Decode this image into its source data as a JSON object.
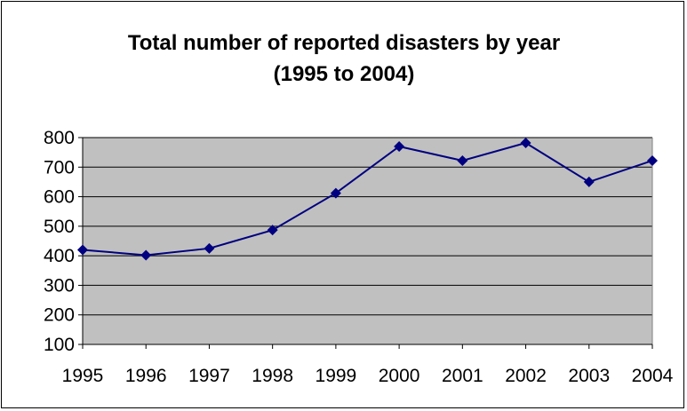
{
  "chart_data": {
    "type": "line",
    "title": "Total number of reported disasters by year",
    "subtitle": "(1995 to 2004)",
    "xlabel": "",
    "ylabel": "",
    "categories": [
      "1995",
      "1996",
      "1997",
      "1998",
      "1999",
      "2000",
      "2001",
      "2002",
      "2003",
      "2004"
    ],
    "series": [
      {
        "values": [
          420,
          402,
          425,
          487,
          612,
          770,
          722,
          782,
          650,
          722
        ],
        "color": "#000080"
      }
    ],
    "ylim": [
      100,
      800
    ],
    "yticks": [
      "100",
      "200",
      "300",
      "400",
      "500",
      "600",
      "700",
      "800"
    ],
    "grid": true,
    "legend": "none",
    "plot_background": "#c0c0c0"
  }
}
